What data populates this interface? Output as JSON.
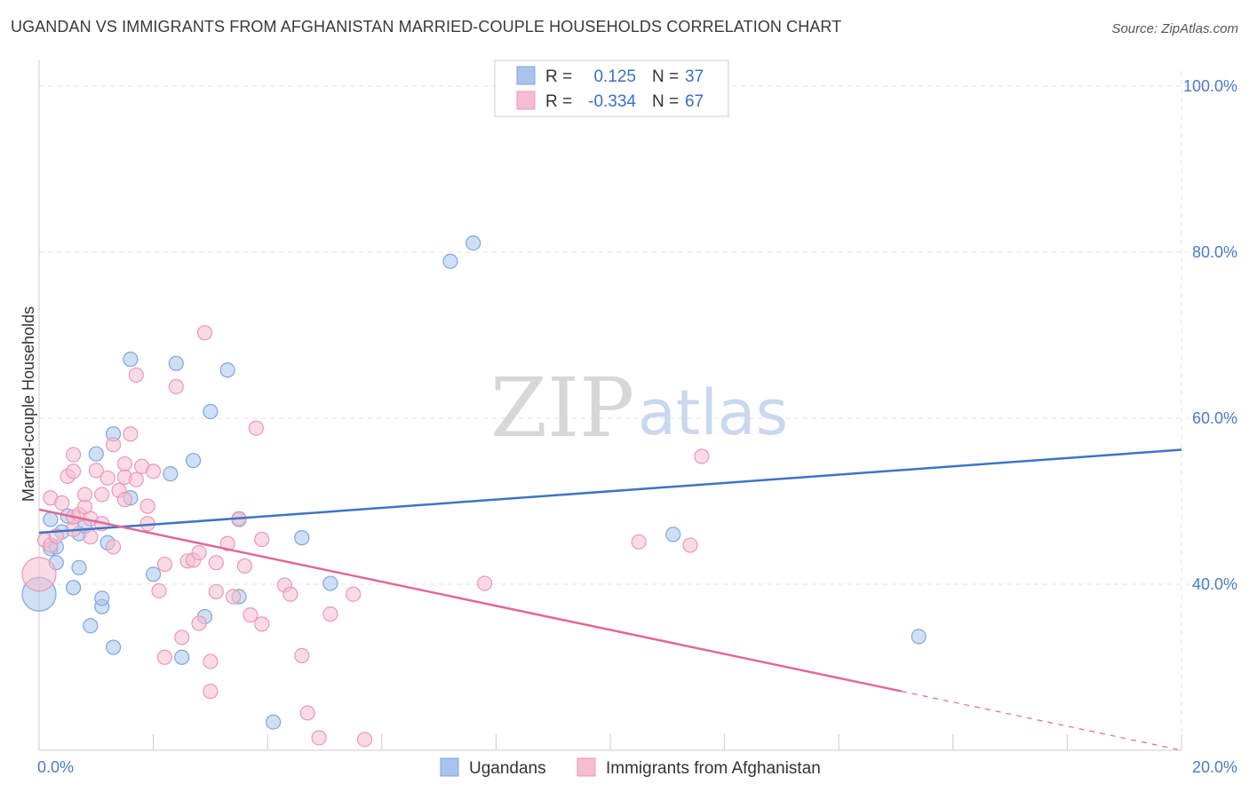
{
  "header": {
    "title": "UGANDAN VS IMMIGRANTS FROM AFGHANISTAN MARRIED-COUPLE HOUSEHOLDS CORRELATION CHART",
    "source": "Source: ZipAtlas.com"
  },
  "watermark": {
    "zip": "ZIP",
    "atlas": "atlas"
  },
  "legend_top": {
    "r_label": "R =",
    "n_label": "N =",
    "rows": [
      {
        "r": "0.125",
        "n": "37",
        "color": "#a8c4ec",
        "stroke": "#7fa6dd"
      },
      {
        "r": "-0.334",
        "n": "67",
        "color": "#f6bdd0",
        "stroke": "#ec97b4"
      }
    ]
  },
  "legend_bottom": [
    {
      "label": "Ugandans",
      "color": "#a8c4ec",
      "stroke": "#7fa6dd"
    },
    {
      "label": "Immigrants from Afghanistan",
      "color": "#f6bdd0",
      "stroke": "#ec97b4"
    }
  ],
  "chart_data": {
    "type": "scatter",
    "ylabel": "Married-couple Households",
    "xlim": [
      0,
      20
    ],
    "ylim": [
      20,
      100
    ],
    "x_tick_labels": [
      {
        "value": 0,
        "label": "0.0%"
      },
      {
        "value": 20,
        "label": "20.0%"
      }
    ],
    "y_tick_labels": [
      {
        "value": 100,
        "label": "100.0%"
      },
      {
        "value": 80,
        "label": "80.0%"
      },
      {
        "value": 60,
        "label": "60.0%"
      },
      {
        "value": 40,
        "label": "40.0%"
      }
    ],
    "grid": true,
    "series": [
      {
        "name": "Ugandans",
        "fill": "#a8c4ec",
        "stroke": "#7fa6dd",
        "line_color": "#3f74c6",
        "trend": {
          "x0": 0,
          "y0": 46.2,
          "x1": 20,
          "y1": 56.2,
          "dash_from": null
        },
        "points": [
          [
            0.0,
            38.8
          ],
          [
            0.2,
            44.3
          ],
          [
            0.2,
            47.8
          ],
          [
            0.3,
            44.5
          ],
          [
            0.3,
            42.6
          ],
          [
            0.4,
            46.3
          ],
          [
            0.5,
            48.2
          ],
          [
            0.6,
            39.6
          ],
          [
            0.7,
            46.1
          ],
          [
            0.7,
            42.0
          ],
          [
            0.8,
            47.0
          ],
          [
            0.9,
            35.0
          ],
          [
            1.0,
            55.7
          ],
          [
            1.1,
            37.3
          ],
          [
            1.1,
            38.3
          ],
          [
            1.2,
            45.0
          ],
          [
            1.3,
            32.4
          ],
          [
            1.3,
            58.1
          ],
          [
            1.6,
            50.4
          ],
          [
            1.6,
            67.1
          ],
          [
            2.0,
            41.2
          ],
          [
            2.3,
            53.3
          ],
          [
            2.4,
            66.6
          ],
          [
            2.5,
            31.2
          ],
          [
            2.7,
            54.9
          ],
          [
            2.9,
            36.1
          ],
          [
            3.0,
            60.8
          ],
          [
            3.3,
            65.8
          ],
          [
            3.5,
            47.8
          ],
          [
            3.5,
            38.5
          ],
          [
            4.1,
            23.4
          ],
          [
            4.6,
            45.6
          ],
          [
            5.1,
            40.1
          ],
          [
            7.2,
            78.9
          ],
          [
            7.6,
            81.1
          ],
          [
            11.1,
            46.0
          ],
          [
            15.4,
            33.7
          ]
        ]
      },
      {
        "name": "Immigrants from Afghanistan",
        "fill": "#f6bdd0",
        "stroke": "#ec97b4",
        "line_color": "#e0699a",
        "trend": {
          "x0": 0,
          "y0": 49.0,
          "x1": 20,
          "y1": 20.0,
          "dash_from": 15.1
        },
        "points": [
          [
            0.0,
            41.2
          ],
          [
            0.1,
            45.3
          ],
          [
            0.2,
            44.7
          ],
          [
            0.2,
            50.4
          ],
          [
            0.3,
            45.8
          ],
          [
            0.4,
            49.8
          ],
          [
            0.5,
            53.0
          ],
          [
            0.6,
            53.6
          ],
          [
            0.6,
            46.6
          ],
          [
            0.6,
            48.1
          ],
          [
            0.6,
            55.6
          ],
          [
            0.7,
            48.4
          ],
          [
            0.8,
            49.3
          ],
          [
            0.8,
            50.8
          ],
          [
            0.9,
            45.7
          ],
          [
            0.9,
            47.9
          ],
          [
            1.0,
            53.7
          ],
          [
            1.1,
            47.3
          ],
          [
            1.1,
            50.8
          ],
          [
            1.2,
            52.8
          ],
          [
            1.3,
            44.5
          ],
          [
            1.3,
            56.8
          ],
          [
            1.4,
            51.3
          ],
          [
            1.5,
            54.5
          ],
          [
            1.5,
            50.2
          ],
          [
            1.5,
            52.9
          ],
          [
            1.6,
            58.1
          ],
          [
            1.7,
            65.2
          ],
          [
            1.7,
            52.6
          ],
          [
            1.8,
            54.2
          ],
          [
            1.9,
            49.4
          ],
          [
            1.9,
            47.3
          ],
          [
            2.0,
            53.6
          ],
          [
            2.1,
            39.2
          ],
          [
            2.2,
            42.4
          ],
          [
            2.2,
            31.2
          ],
          [
            2.4,
            63.8
          ],
          [
            2.5,
            33.6
          ],
          [
            2.6,
            42.8
          ],
          [
            2.7,
            42.9
          ],
          [
            2.8,
            43.8
          ],
          [
            2.8,
            35.3
          ],
          [
            3.0,
            27.1
          ],
          [
            3.0,
            30.7
          ],
          [
            3.1,
            39.1
          ],
          [
            3.1,
            42.6
          ],
          [
            3.3,
            44.9
          ],
          [
            3.4,
            38.5
          ],
          [
            3.5,
            47.9
          ],
          [
            3.6,
            42.2
          ],
          [
            3.7,
            36.3
          ],
          [
            3.8,
            58.8
          ],
          [
            3.9,
            35.2
          ],
          [
            3.9,
            45.4
          ],
          [
            4.3,
            39.9
          ],
          [
            4.4,
            38.8
          ],
          [
            4.6,
            31.4
          ],
          [
            4.7,
            24.5
          ],
          [
            4.9,
            21.5
          ],
          [
            5.1,
            36.4
          ],
          [
            5.5,
            38.8
          ],
          [
            5.7,
            21.3
          ],
          [
            7.8,
            40.1
          ],
          [
            10.5,
            45.1
          ],
          [
            11.4,
            44.7
          ],
          [
            2.9,
            70.3
          ],
          [
            11.6,
            55.4
          ]
        ]
      }
    ]
  }
}
